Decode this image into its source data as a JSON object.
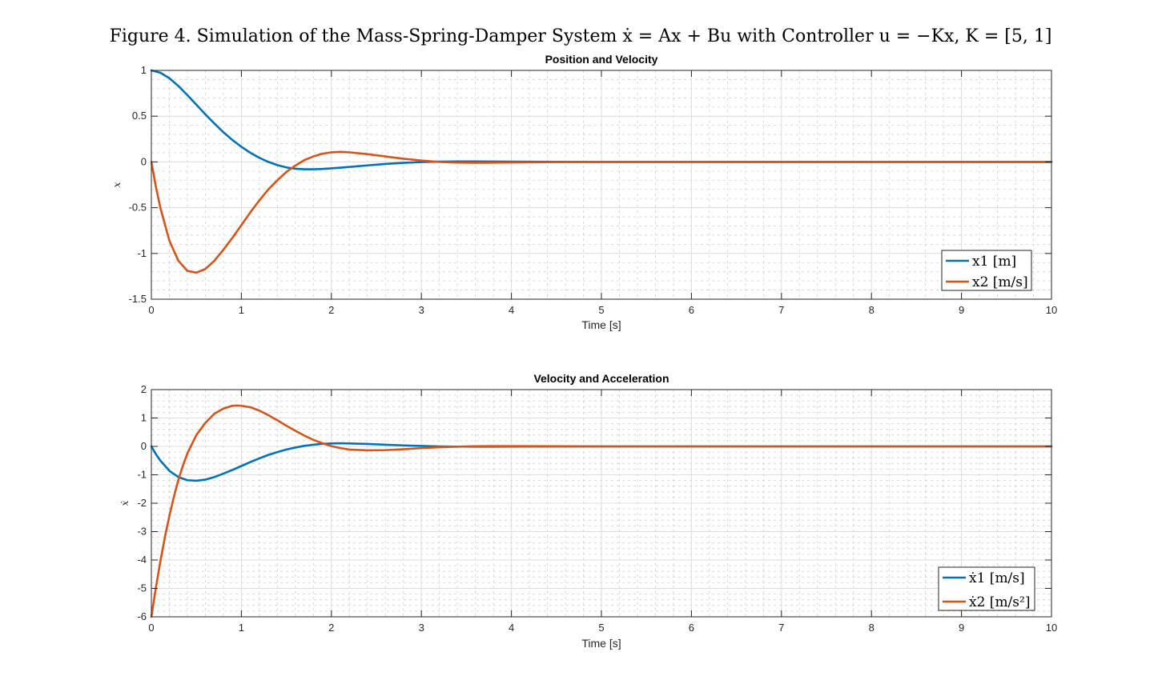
{
  "figure": {
    "suptitle": "Figure 4. Simulation of the Mass-Spring-Damper System ẋ = Ax + Bu with Controller u = −Kx, K = [5, 1]"
  },
  "chart_data": [
    {
      "type": "line",
      "title": "Position and Velocity",
      "xlabel": "Time [s]",
      "ylabel": "x",
      "xlim": [
        0,
        10
      ],
      "ylim": [
        -1.5,
        1
      ],
      "xticks": [
        0,
        1,
        2,
        3,
        4,
        5,
        6,
        7,
        8,
        9,
        10
      ],
      "xtick_labels": [
        "0",
        "1",
        "2",
        "3",
        "4",
        "5",
        "6",
        "7",
        "8",
        "9",
        "10"
      ],
      "yticks": [
        -1.5,
        -1,
        -0.5,
        0,
        0.5,
        1
      ],
      "ytick_labels": [
        "-1.5",
        "-1",
        "-0.5",
        "0",
        "0.5",
        "1"
      ],
      "grid": true,
      "minor_grid": true,
      "legend_position": "bottom-right",
      "series": [
        {
          "name": "x1 [m]",
          "color": "#0072BD",
          "x": [
            0,
            0.1,
            0.2,
            0.3,
            0.4,
            0.5,
            0.6,
            0.7,
            0.8,
            0.9,
            1.0,
            1.1,
            1.2,
            1.3,
            1.4,
            1.5,
            1.6,
            1.7,
            1.8,
            1.9,
            2.0,
            2.2,
            2.4,
            2.6,
            2.8,
            3.0,
            3.2,
            3.4,
            3.6,
            3.8,
            4.0,
            4.5,
            5.0,
            6.0,
            7.0,
            8.0,
            9.0,
            10.0
          ],
          "y": [
            1.0,
            0.975,
            0.915,
            0.83,
            0.73,
            0.625,
            0.52,
            0.42,
            0.325,
            0.24,
            0.165,
            0.1,
            0.045,
            0.0,
            -0.035,
            -0.06,
            -0.075,
            -0.08,
            -0.08,
            -0.077,
            -0.07,
            -0.055,
            -0.038,
            -0.022,
            -0.01,
            -0.002,
            0.003,
            0.005,
            0.005,
            0.004,
            0.003,
            0.001,
            0.0,
            0.0,
            0.0,
            0.0,
            0.0,
            0.0
          ]
        },
        {
          "name": "x2 [m/s]",
          "color": "#D95319",
          "x": [
            0,
            0.05,
            0.1,
            0.2,
            0.3,
            0.4,
            0.5,
            0.6,
            0.7,
            0.8,
            0.9,
            1.0,
            1.1,
            1.2,
            1.3,
            1.4,
            1.5,
            1.6,
            1.7,
            1.8,
            1.9,
            2.0,
            2.1,
            2.2,
            2.4,
            2.6,
            2.8,
            3.0,
            3.2,
            3.4,
            3.6,
            3.8,
            4.0,
            4.5,
            5.0,
            6.0,
            7.0,
            8.0,
            9.0,
            10.0
          ],
          "y": [
            0.0,
            -0.27,
            -0.5,
            -0.86,
            -1.08,
            -1.19,
            -1.21,
            -1.17,
            -1.08,
            -0.96,
            -0.83,
            -0.69,
            -0.55,
            -0.42,
            -0.3,
            -0.2,
            -0.11,
            -0.04,
            0.02,
            0.06,
            0.09,
            0.105,
            0.11,
            0.105,
            0.085,
            0.06,
            0.035,
            0.015,
            0.0,
            -0.007,
            -0.009,
            -0.008,
            -0.006,
            -0.002,
            0.0,
            0.0,
            0.0,
            0.0,
            0.0,
            0.0
          ]
        }
      ]
    },
    {
      "type": "line",
      "title": "Velocity and Acceleration",
      "xlabel": "Time [s]",
      "ylabel": "ẋ",
      "xlim": [
        0,
        10
      ],
      "ylim": [
        -6,
        2
      ],
      "xticks": [
        0,
        1,
        2,
        3,
        4,
        5,
        6,
        7,
        8,
        9,
        10
      ],
      "xtick_labels": [
        "0",
        "1",
        "2",
        "3",
        "4",
        "5",
        "6",
        "7",
        "8",
        "9",
        "10"
      ],
      "yticks": [
        -6,
        -5,
        -4,
        -3,
        -2,
        -1,
        0,
        1,
        2
      ],
      "ytick_labels": [
        "-6",
        "-5",
        "-4",
        "-3",
        "-2",
        "-1",
        "0",
        "1",
        "2"
      ],
      "grid": true,
      "minor_grid": true,
      "legend_position": "bottom-right",
      "series": [
        {
          "name": "ẋ1 [m/s]",
          "color": "#0072BD",
          "x": [
            0,
            0.05,
            0.1,
            0.2,
            0.3,
            0.4,
            0.5,
            0.6,
            0.7,
            0.8,
            0.9,
            1.0,
            1.1,
            1.2,
            1.3,
            1.4,
            1.5,
            1.6,
            1.7,
            1.8,
            1.9,
            2.0,
            2.1,
            2.2,
            2.4,
            2.6,
            2.8,
            3.0,
            3.2,
            3.4,
            3.6,
            3.8,
            4.0,
            4.5,
            5.0,
            6.0,
            7.0,
            8.0,
            9.0,
            10.0
          ],
          "y": [
            0.0,
            -0.27,
            -0.5,
            -0.86,
            -1.08,
            -1.19,
            -1.21,
            -1.17,
            -1.08,
            -0.96,
            -0.83,
            -0.69,
            -0.55,
            -0.42,
            -0.3,
            -0.2,
            -0.11,
            -0.04,
            0.02,
            0.06,
            0.09,
            0.105,
            0.11,
            0.105,
            0.085,
            0.06,
            0.035,
            0.015,
            0.0,
            -0.007,
            -0.009,
            -0.008,
            -0.006,
            -0.002,
            0.0,
            0.0,
            0.0,
            0.0,
            0.0,
            0.0
          ]
        },
        {
          "name": "ẋ2 [m/s²]",
          "color": "#D95319",
          "x": [
            0,
            0.05,
            0.1,
            0.15,
            0.2,
            0.25,
            0.3,
            0.35,
            0.4,
            0.5,
            0.6,
            0.7,
            0.8,
            0.9,
            0.95,
            1.0,
            1.1,
            1.2,
            1.3,
            1.4,
            1.5,
            1.6,
            1.7,
            1.8,
            1.9,
            2.0,
            2.1,
            2.2,
            2.4,
            2.6,
            2.8,
            3.0,
            3.2,
            3.4,
            3.6,
            3.8,
            4.0,
            4.5,
            5.0,
            6.0,
            7.0,
            8.0,
            9.0,
            10.0
          ],
          "y": [
            -6.0,
            -4.98,
            -4.05,
            -3.2,
            -2.45,
            -1.78,
            -1.18,
            -0.68,
            -0.25,
            0.4,
            0.83,
            1.15,
            1.33,
            1.43,
            1.44,
            1.43,
            1.38,
            1.26,
            1.1,
            0.92,
            0.73,
            0.55,
            0.38,
            0.23,
            0.11,
            0.01,
            -0.06,
            -0.11,
            -0.14,
            -0.13,
            -0.1,
            -0.06,
            -0.03,
            -0.01,
            0.005,
            0.01,
            0.01,
            0.004,
            0.0,
            0.0,
            0.0,
            0.0,
            0.0,
            0.0
          ]
        }
      ]
    }
  ]
}
